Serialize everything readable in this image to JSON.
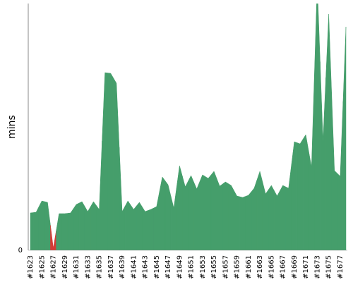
{
  "chart_data": {
    "type": "area",
    "y_label": "mins",
    "categories": [
      "#1623",
      null,
      "#1625",
      null,
      "#1627",
      null,
      "#1629",
      null,
      "#1631",
      null,
      "#1633",
      null,
      "#1635",
      null,
      "#1637",
      null,
      "#1639",
      null,
      "#1641",
      null,
      "#1643",
      null,
      "#1645",
      null,
      "#1647",
      null,
      "#1649",
      null,
      "#1651",
      null,
      "#1653",
      null,
      "#1655",
      null,
      "#1657",
      null,
      "#1659",
      null,
      "#1661",
      null,
      "#1663",
      null,
      "#1665",
      null,
      "#1667",
      null,
      "#1669",
      null,
      "#1671",
      null,
      "#1673",
      null,
      "#1675",
      null,
      "#1677",
      null
    ],
    "values": [
      5.3,
      5.4,
      7.0,
      6.8,
      0.3,
      5.2,
      5.2,
      5.3,
      6.5,
      6.9,
      5.5,
      6.9,
      5.8,
      25.2,
      25.1,
      23.7,
      5.5,
      7.0,
      5.8,
      6.8,
      5.5,
      5.8,
      6.2,
      10.4,
      9.3,
      6.0,
      12.0,
      9.0,
      10.6,
      8.7,
      10.7,
      10.2,
      11.2,
      9.1,
      9.7,
      9.2,
      7.7,
      7.5,
      7.8,
      8.8,
      11.2,
      8.0,
      9.2,
      7.7,
      9.2,
      8.8,
      15.4,
      15.1,
      16.4,
      11.8,
      38,
      15.5,
      33.5,
      11.3,
      10.5,
      31.7
    ],
    "colors": [
      "#459e6b",
      "#459e6b",
      "#459e6b",
      "#459e6b",
      "#d43b36",
      "#459e6b",
      "#459e6b",
      "#459e6b",
      "#459e6b",
      "#459e6b",
      "#459e6b",
      "#459e6b",
      "#459e6b",
      "#459e6b",
      "#459e6b",
      "#459e6b",
      "#459e6b",
      "#459e6b",
      "#459e6b",
      "#459e6b",
      "#459e6b",
      "#459e6b",
      "#459e6b",
      "#459e6b",
      "#459e6b",
      "#459e6b",
      "#459e6b",
      "#459e6b",
      "#459e6b",
      "#459e6b",
      "#459e6b",
      "#459e6b",
      "#459e6b",
      "#459e6b",
      "#459e6b",
      "#459e6b",
      "#459e6b",
      "#459e6b",
      "#459e6b",
      "#459e6b",
      "#459e6b",
      "#459e6b",
      "#459e6b",
      "#459e6b",
      "#459e6b",
      "#459e6b",
      "#459e6b",
      "#459e6b",
      "#459e6b",
      "#459e6b",
      "#459e6b",
      "#459e6b",
      "#459e6b",
      "#459e6b",
      "#459e6b",
      "#459e6b"
    ],
    "ylim": [
      0,
      35
    ],
    "yticks": [
      0
    ]
  }
}
